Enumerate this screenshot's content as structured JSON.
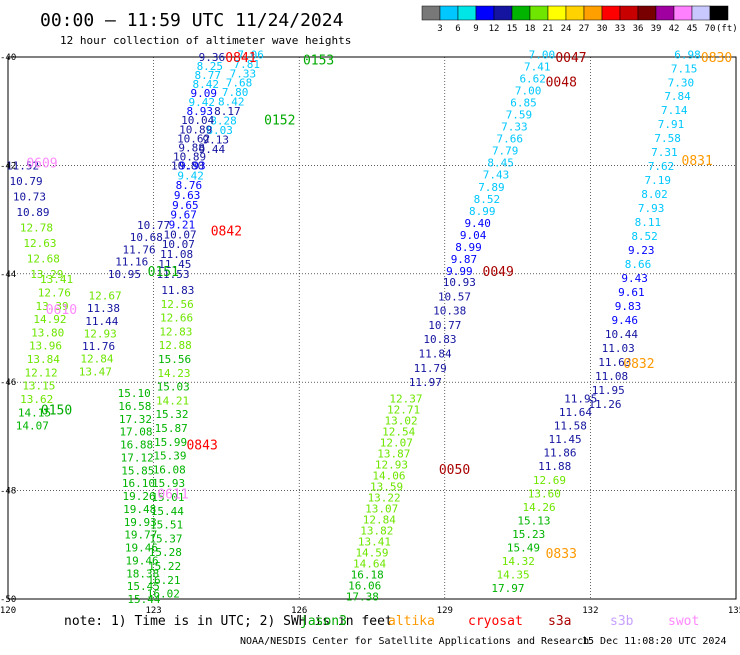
{
  "header": {
    "title": "00:00 – 11:59 UTC 11/24/2024",
    "subtitle": "12 hour collection of altimeter wave heights"
  },
  "colorbar": {
    "unit": "(ft)",
    "labels": [
      "3",
      "6",
      "9",
      "12",
      "15",
      "18",
      "21",
      "24",
      "27",
      "30",
      "33",
      "36",
      "39",
      "42",
      "45",
      "70"
    ],
    "colors": [
      "#787878",
      "#00c8ff",
      "#00e6e6",
      "#0000ff",
      "#1414a0",
      "#00b400",
      "#6ee600",
      "#ffff00",
      "#ffd200",
      "#ffa000",
      "#ff0000",
      "#c80000",
      "#780000",
      "#a000a0",
      "#ff80ff",
      "#c8c8ff",
      "#000000"
    ]
  },
  "map": {
    "lon_min": 120,
    "lon_max": 135,
    "lat_min": -50,
    "lat_max": -40,
    "lon_ticks": [
      "120",
      "123",
      "126",
      "129",
      "132",
      "135"
    ],
    "lat_ticks": [
      "-40",
      "-42",
      "-44",
      "-46",
      "-48",
      "-50"
    ]
  },
  "footer": {
    "note": "note:  1) Time is in UTC; 2) SWH is in feet",
    "credit": "NOAA/NESDIS Center for Satellite Applications and Research",
    "timestamp": "15 Dec 11:08:20 UTC 2024"
  },
  "satellites": [
    {
      "name": "jason3",
      "color": "#00aa00"
    },
    {
      "name": "altika",
      "color": "#ff9900"
    },
    {
      "name": "cryosat",
      "color": "#ff0000"
    },
    {
      "name": "s3a",
      "color": "#aa0000"
    },
    {
      "name": "s3b",
      "color": "#c8a0ff"
    },
    {
      "name": "swot",
      "color": "#ff88ff"
    }
  ],
  "time_labels": [
    {
      "text": "0841",
      "lon": 124.8,
      "lat": -40.0,
      "color": "#ff0000"
    },
    {
      "text": "0153",
      "lon": 126.4,
      "lat": -40.05,
      "color": "#00aa00"
    },
    {
      "text": "0152",
      "lon": 125.6,
      "lat": -41.15,
      "color": "#00aa00"
    },
    {
      "text": "0609",
      "lon": 120.7,
      "lat": -41.95,
      "color": "#ff88ff"
    },
    {
      "text": "0842",
      "lon": 124.5,
      "lat": -43.2,
      "color": "#ff0000"
    },
    {
      "text": "0151",
      "lon": 123.2,
      "lat": -43.95,
      "color": "#00aa00"
    },
    {
      "text": "0610",
      "lon": 121.1,
      "lat": -44.65,
      "color": "#ff88ff"
    },
    {
      "text": "0150",
      "lon": 121.0,
      "lat": -46.5,
      "color": "#00aa00"
    },
    {
      "text": "0843",
      "lon": 124.0,
      "lat": -47.15,
      "color": "#ff0000"
    },
    {
      "text": "0611",
      "lon": 123.4,
      "lat": -48.05,
      "color": "#ff88ff"
    },
    {
      "text": "0047",
      "lon": 131.6,
      "lat": -40.0,
      "color": "#aa0000"
    },
    {
      "text": "0830",
      "lon": 134.6,
      "lat": -40.0,
      "color": "#ff9900"
    },
    {
      "text": "0048",
      "lon": 131.4,
      "lat": -40.45,
      "color": "#aa0000"
    },
    {
      "text": "0831",
      "lon": 134.2,
      "lat": -41.9,
      "color": "#ff9900"
    },
    {
      "text": "0049",
      "lon": 130.1,
      "lat": -43.95,
      "color": "#aa0000"
    },
    {
      "text": "0832",
      "lon": 133.0,
      "lat": -45.65,
      "color": "#ff9900"
    },
    {
      "text": "0050",
      "lon": 129.2,
      "lat": -47.6,
      "color": "#aa0000"
    },
    {
      "text": "0833",
      "lon": 131.4,
      "lat": -49.15,
      "color": "#ff9900"
    }
  ],
  "tracks": [
    {
      "id": "jason3-0152-a",
      "lon0": 125.0,
      "lat0": -39.95,
      "lon1": 124.2,
      "lat1": -41.7,
      "values": [
        "7.06",
        "7.81",
        "7.33",
        "7.68",
        "7.80",
        "8.42",
        "8.17",
        "8.28",
        "8.03",
        "9.13",
        "9.44"
      ],
      "colors": [
        "#00c8ff",
        "#00c8ff",
        "#00c8ff",
        "#00c8ff",
        "#00c8ff",
        "#00c8ff",
        "#1414a0",
        "#00c8ff",
        "#00c8ff",
        "#1414a0",
        "#1414a0"
      ]
    },
    {
      "id": "jason3-0152-b",
      "lon0": 124.2,
      "lat0": -40.0,
      "lon1": 123.7,
      "lat1": -42.0,
      "values": [
        "9.36",
        "8.25",
        "8.77",
        "8.42",
        "9.09",
        "9.42",
        "8.93",
        "10.04",
        "10.89",
        "10.62",
        "9.88",
        "10.89",
        "10.80"
      ],
      "colors": [
        "#1414a0",
        "#00c8ff",
        "#00c8ff",
        "#00c8ff",
        "#0000ff",
        "#00c8ff",
        "#0000ff",
        "#1414a0",
        "#1414a0",
        "#1414a0",
        "#1414a0",
        "#1414a0",
        "#1414a0"
      ]
    },
    {
      "id": "jason3-0151",
      "lon0": 123.8,
      "lat0": -42.0,
      "lon1": 123.4,
      "lat1": -44.0,
      "values": [
        "9.93",
        "9.42",
        "8.76",
        "9.63",
        "9.65",
        "9.67",
        "9.21",
        "10.07",
        "10.07",
        "11.08",
        "11.45",
        "11.53"
      ],
      "colors": [
        "#0000ff",
        "#00c8ff",
        "#0000ff",
        "#0000ff",
        "#0000ff",
        "#0000ff",
        "#0000ff",
        "#1414a0",
        "#1414a0",
        "#1414a0",
        "#1414a0",
        "#1414a0"
      ]
    },
    {
      "id": "jason3-0151-w",
      "lon0": 123.0,
      "lat0": -43.1,
      "lon1": 122.4,
      "lat1": -44.0,
      "values": [
        "10.77",
        "10.68",
        "11.76",
        "11.16",
        "10.95"
      ],
      "colors": [
        "#1414a0",
        "#1414a0",
        "#1414a0",
        "#1414a0",
        "#1414a0"
      ]
    },
    {
      "id": "jason3-0150",
      "lon0": 123.5,
      "lat0": -44.3,
      "lon1": 123.2,
      "lat1": -49.9,
      "values": [
        "11.83",
        "12.56",
        "12.66",
        "12.83",
        "12.88",
        "15.56",
        "14.23",
        "15.03",
        "14.21",
        "15.32",
        "15.87",
        "15.99",
        "15.39",
        "16.08",
        "15.93",
        "15.01",
        "15.44",
        "15.51",
        "15.37",
        "15.28",
        "15.22",
        "16.21",
        "16.02"
      ],
      "colors": [
        "#1414a0",
        "#6ee600",
        "#6ee600",
        "#6ee600",
        "#6ee600",
        "#00b400",
        "#6ee600",
        "#00b400",
        "#6ee600",
        "#00b400",
        "#00b400",
        "#00b400",
        "#00b400",
        "#00b400",
        "#00b400",
        "#00b400",
        "#00b400",
        "#00b400",
        "#00b400",
        "#00b400",
        "#00b400",
        "#00b400",
        "#00b400"
      ]
    },
    {
      "id": "jason3-0150-w",
      "lon0": 122.6,
      "lat0": -46.2,
      "lon1": 122.8,
      "lat1": -50.0,
      "values": [
        "15.10",
        "16.58",
        "17.32",
        "17.08",
        "16.88",
        "17.12",
        "15.85",
        "16.10",
        "19.26",
        "19.48",
        "19.93",
        "19.77",
        "19.46",
        "19.46",
        "18.38",
        "15.45",
        "15.44"
      ],
      "colors": [
        "#00b400",
        "#00b400",
        "#00b400",
        "#00b400",
        "#00b400",
        "#00b400",
        "#00b400",
        "#00b400",
        "#00b400",
        "#00b400",
        "#00b400",
        "#00b400",
        "#00b400",
        "#00b400",
        "#00b400",
        "#00b400",
        "#00b400"
      ]
    },
    {
      "id": "swot-0609",
      "lon0": 120.3,
      "lat0": -42.0,
      "lon1": 120.8,
      "lat1": -44.0,
      "values": [
        "11.52",
        "10.79",
        "10.73",
        "10.89",
        "12.78",
        "12.63",
        "12.68",
        "13.29"
      ],
      "colors": [
        "#1414a0",
        "#1414a0",
        "#1414a0",
        "#1414a0",
        "#6ee600",
        "#6ee600",
        "#6ee600",
        "#6ee600"
      ]
    },
    {
      "id": "swot-0610",
      "lon0": 121.0,
      "lat0": -44.1,
      "lon1": 120.5,
      "lat1": -46.8,
      "values": [
        "13.41",
        "12.76",
        "13.39",
        "14.92",
        "13.80",
        "13.96",
        "13.84",
        "12.12",
        "13.15",
        "13.62",
        "14.15",
        "14.07"
      ],
      "colors": [
        "#6ee600",
        "#6ee600",
        "#6ee600",
        "#6ee600",
        "#6ee600",
        "#6ee600",
        "#6ee600",
        "#6ee600",
        "#6ee600",
        "#6ee600",
        "#00b400",
        "#00b400"
      ]
    },
    {
      "id": "swot-0610-e",
      "lon0": 122.0,
      "lat0": -44.4,
      "lon1": 121.8,
      "lat1": -45.8,
      "values": [
        "12.67",
        "11.38",
        "11.44",
        "12.93",
        "11.76",
        "12.84",
        "13.47"
      ],
      "colors": [
        "#6ee600",
        "#1414a0",
        "#1414a0",
        "#6ee600",
        "#1414a0",
        "#6ee600",
        "#6ee600"
      ]
    },
    {
      "id": "s3a-0048",
      "lon0": 131.0,
      "lat0": -39.95,
      "lon1": 129.3,
      "lat1": -43.95,
      "values": [
        "7.00",
        "7.41",
        "6.62",
        "7.00",
        "6.85",
        "7.59",
        "7.33",
        "7.66",
        "7.79",
        "8.45",
        "7.43",
        "7.89",
        "8.52",
        "8.99",
        "9.40",
        "9.04",
        "8.99",
        "9.87",
        "9.99"
      ],
      "colors": [
        "#00c8ff",
        "#00c8ff",
        "#00c8ff",
        "#00c8ff",
        "#00c8ff",
        "#00c8ff",
        "#00c8ff",
        "#00c8ff",
        "#00c8ff",
        "#00c8ff",
        "#00c8ff",
        "#00c8ff",
        "#00c8ff",
        "#00c8ff",
        "#0000ff",
        "#0000ff",
        "#0000ff",
        "#0000ff",
        "#0000ff"
      ]
    },
    {
      "id": "s3a-0049",
      "lon0": 129.3,
      "lat0": -44.15,
      "lon1": 128.6,
      "lat1": -46.0,
      "values": [
        "10.93",
        "10.57",
        "10.38",
        "10.77",
        "10.83",
        "11.84",
        "11.79",
        "11.97"
      ],
      "colors": [
        "#1414a0",
        "#1414a0",
        "#1414a0",
        "#1414a0",
        "#1414a0",
        "#1414a0",
        "#1414a0",
        "#1414a0"
      ]
    },
    {
      "id": "s3a-0050",
      "lon0": 128.2,
      "lat0": -46.3,
      "lon1": 127.3,
      "lat1": -49.95,
      "values": [
        "12.37",
        "12.71",
        "13.02",
        "12.54",
        "12.07",
        "13.87",
        "12.93",
        "14.06",
        "13.59",
        "13.22",
        "13.07",
        "12.84",
        "13.82",
        "13.41",
        "14.59",
        "14.64",
        "16.18",
        "16.06",
        "17.38"
      ],
      "colors": [
        "#6ee600",
        "#6ee600",
        "#6ee600",
        "#6ee600",
        "#6ee600",
        "#6ee600",
        "#6ee600",
        "#6ee600",
        "#6ee600",
        "#6ee600",
        "#6ee600",
        "#6ee600",
        "#6ee600",
        "#6ee600",
        "#6ee600",
        "#6ee600",
        "#00b400",
        "#00b400",
        "#00b400"
      ]
    },
    {
      "id": "altika-0831",
      "lon0": 134.0,
      "lat0": -39.95,
      "lon1": 132.3,
      "lat1": -46.4,
      "values": [
        "6.98",
        "7.15",
        "7.30",
        "7.84",
        "7.14",
        "7.91",
        "7.58",
        "7.31",
        "7.62",
        "7.19",
        "8.02",
        "7.93",
        "8.11",
        "8.52",
        "9.23",
        "8.66",
        "9.43",
        "9.61",
        "9.83",
        "9.46",
        "10.44",
        "11.03",
        "11.63",
        "11.08",
        "11.95",
        "11.26"
      ],
      "colors": [
        "#00c8ff",
        "#00c8ff",
        "#00c8ff",
        "#00c8ff",
        "#00c8ff",
        "#00c8ff",
        "#00c8ff",
        "#00c8ff",
        "#00c8ff",
        "#00c8ff",
        "#00c8ff",
        "#00c8ff",
        "#00c8ff",
        "#00c8ff",
        "#0000ff",
        "#00c8ff",
        "#0000ff",
        "#0000ff",
        "#0000ff",
        "#0000ff",
        "#1414a0",
        "#1414a0",
        "#1414a0",
        "#1414a0",
        "#1414a0",
        "#1414a0"
      ]
    },
    {
      "id": "altika-0832",
      "lon0": 131.8,
      "lat0": -46.3,
      "lon1": 130.3,
      "lat1": -49.8,
      "values": [
        "11.95",
        "11.64",
        "11.58",
        "11.45",
        "11.86",
        "11.88",
        "12.69",
        "13.60",
        "14.26",
        "15.13",
        "15.23",
        "15.49",
        "14.32",
        "14.35",
        "17.97"
      ],
      "colors": [
        "#1414a0",
        "#1414a0",
        "#1414a0",
        "#1414a0",
        "#1414a0",
        "#1414a0",
        "#6ee600",
        "#6ee600",
        "#6ee600",
        "#00b400",
        "#00b400",
        "#00b400",
        "#6ee600",
        "#6ee600",
        "#00b400"
      ]
    }
  ]
}
